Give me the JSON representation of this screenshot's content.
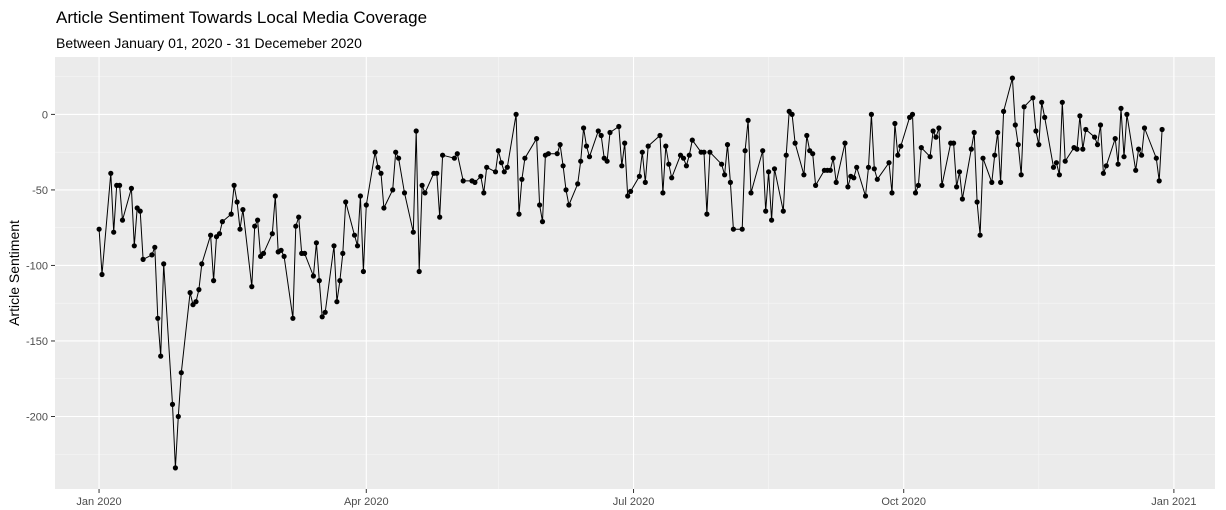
{
  "chart_data": {
    "type": "line",
    "title": "Article Sentiment Towards Local Media Coverage",
    "subtitle": "Between January 01, 2020 - 31 Decemeber 2020",
    "xlabel": "",
    "ylabel": "Article Sentiment",
    "xlim": [
      "2019-12-17",
      "2021-01-15"
    ],
    "ylim": [
      -248,
      38
    ],
    "x_ticks": [
      {
        "date": "2020-01-01",
        "label": "Jan 2020"
      },
      {
        "date": "2020-04-01",
        "label": "Apr 2020"
      },
      {
        "date": "2020-07-01",
        "label": "Jul 2020"
      },
      {
        "date": "2020-10-01",
        "label": "Oct 2020"
      },
      {
        "date": "2021-01-01",
        "label": "Jan 2021"
      }
    ],
    "x_minor_ticks": [
      "2020-02-15",
      "2020-05-16",
      "2020-08-16",
      "2020-11-16"
    ],
    "y_ticks": [
      0,
      -50,
      -100,
      -150,
      -200
    ],
    "y_minor_ticks": [
      25,
      -25,
      -75,
      -125,
      -175,
      -225
    ],
    "grid": true,
    "colors": {
      "panel": "#ebebeb",
      "grid": "#ffffff",
      "series": "#000000"
    },
    "series": [
      {
        "points": [
          [
            "2020-01-01",
            -76
          ],
          [
            "2020-01-02",
            -106
          ],
          [
            "2020-01-05",
            -39
          ],
          [
            "2020-01-06",
            -78
          ],
          [
            "2020-01-07",
            -47
          ],
          [
            "2020-01-08",
            -47
          ],
          [
            "2020-01-09",
            -70
          ],
          [
            "2020-01-12",
            -49
          ],
          [
            "2020-01-13",
            -87
          ],
          [
            "2020-01-14",
            -62
          ],
          [
            "2020-01-15",
            -64
          ],
          [
            "2020-01-16",
            -96
          ],
          [
            "2020-01-19",
            -93
          ],
          [
            "2020-01-20",
            -88
          ],
          [
            "2020-01-21",
            -135
          ],
          [
            "2020-01-22",
            -160
          ],
          [
            "2020-01-23",
            -99
          ],
          [
            "2020-01-26",
            -192
          ],
          [
            "2020-01-27",
            -234
          ],
          [
            "2020-01-28",
            -200
          ],
          [
            "2020-01-29",
            -171
          ],
          [
            "2020-02-01",
            -118
          ],
          [
            "2020-02-02",
            -126
          ],
          [
            "2020-02-03",
            -124
          ],
          [
            "2020-02-04",
            -116
          ],
          [
            "2020-02-05",
            -99
          ],
          [
            "2020-02-08",
            -80
          ],
          [
            "2020-02-09",
            -110
          ],
          [
            "2020-02-10",
            -81
          ],
          [
            "2020-02-11",
            -79
          ],
          [
            "2020-02-12",
            -71
          ],
          [
            "2020-02-15",
            -66
          ],
          [
            "2020-02-16",
            -47
          ],
          [
            "2020-02-17",
            -58
          ],
          [
            "2020-02-18",
            -76
          ],
          [
            "2020-02-19",
            -63
          ],
          [
            "2020-02-22",
            -114
          ],
          [
            "2020-02-23",
            -74
          ],
          [
            "2020-02-24",
            -70
          ],
          [
            "2020-02-25",
            -94
          ],
          [
            "2020-02-26",
            -92
          ],
          [
            "2020-02-29",
            -79
          ],
          [
            "2020-03-01",
            -54
          ],
          [
            "2020-03-02",
            -91
          ],
          [
            "2020-03-03",
            -90
          ],
          [
            "2020-03-04",
            -94
          ],
          [
            "2020-03-07",
            -135
          ],
          [
            "2020-03-08",
            -74
          ],
          [
            "2020-03-09",
            -68
          ],
          [
            "2020-03-10",
            -92
          ],
          [
            "2020-03-11",
            -92
          ],
          [
            "2020-03-14",
            -107
          ],
          [
            "2020-03-15",
            -85
          ],
          [
            "2020-03-16",
            -110
          ],
          [
            "2020-03-17",
            -134
          ],
          [
            "2020-03-18",
            -131
          ],
          [
            "2020-03-21",
            -87
          ],
          [
            "2020-03-22",
            -124
          ],
          [
            "2020-03-23",
            -110
          ],
          [
            "2020-03-24",
            -92
          ],
          [
            "2020-03-25",
            -58
          ],
          [
            "2020-03-28",
            -80
          ],
          [
            "2020-03-29",
            -87
          ],
          [
            "2020-03-30",
            -54
          ],
          [
            "2020-03-31",
            -104
          ],
          [
            "2020-04-01",
            -60
          ],
          [
            "2020-04-04",
            -25
          ],
          [
            "2020-04-05",
            -35
          ],
          [
            "2020-04-06",
            -39
          ],
          [
            "2020-04-07",
            -62
          ],
          [
            "2020-04-10",
            -50
          ],
          [
            "2020-04-11",
            -25
          ],
          [
            "2020-04-12",
            -29
          ],
          [
            "2020-04-14",
            -52
          ],
          [
            "2020-04-17",
            -78
          ],
          [
            "2020-04-18",
            -11
          ],
          [
            "2020-04-19",
            -104
          ],
          [
            "2020-04-20",
            -47
          ],
          [
            "2020-04-21",
            -52
          ],
          [
            "2020-04-24",
            -39
          ],
          [
            "2020-04-25",
            -39
          ],
          [
            "2020-04-26",
            -68
          ],
          [
            "2020-04-27",
            -27
          ],
          [
            "2020-05-01",
            -29
          ],
          [
            "2020-05-02",
            -26
          ],
          [
            "2020-05-04",
            -44
          ],
          [
            "2020-05-07",
            -44
          ],
          [
            "2020-05-08",
            -45
          ],
          [
            "2020-05-10",
            -41
          ],
          [
            "2020-05-11",
            -52
          ],
          [
            "2020-05-12",
            -35
          ],
          [
            "2020-05-15",
            -38
          ],
          [
            "2020-05-16",
            -24
          ],
          [
            "2020-05-17",
            -32
          ],
          [
            "2020-05-18",
            -38
          ],
          [
            "2020-05-19",
            -35
          ],
          [
            "2020-05-22",
            0
          ],
          [
            "2020-05-23",
            -66
          ],
          [
            "2020-05-24",
            -43
          ],
          [
            "2020-05-25",
            -29
          ],
          [
            "2020-05-29",
            -16
          ],
          [
            "2020-05-30",
            -60
          ],
          [
            "2020-05-31",
            -71
          ],
          [
            "2020-06-01",
            -27
          ],
          [
            "2020-06-02",
            -26
          ],
          [
            "2020-06-05",
            -26
          ],
          [
            "2020-06-06",
            -20
          ],
          [
            "2020-06-07",
            -34
          ],
          [
            "2020-06-08",
            -50
          ],
          [
            "2020-06-09",
            -60
          ],
          [
            "2020-06-12",
            -46
          ],
          [
            "2020-06-13",
            -31
          ],
          [
            "2020-06-14",
            -9
          ],
          [
            "2020-06-15",
            -21
          ],
          [
            "2020-06-16",
            -28
          ],
          [
            "2020-06-19",
            -11
          ],
          [
            "2020-06-20",
            -14
          ],
          [
            "2020-06-21",
            -29
          ],
          [
            "2020-06-22",
            -31
          ],
          [
            "2020-06-23",
            -12
          ],
          [
            "2020-06-26",
            -8
          ],
          [
            "2020-06-27",
            -34
          ],
          [
            "2020-06-28",
            -19
          ],
          [
            "2020-06-29",
            -54
          ],
          [
            "2020-06-30",
            -51
          ],
          [
            "2020-07-03",
            -41
          ],
          [
            "2020-07-04",
            -25
          ],
          [
            "2020-07-05",
            -45
          ],
          [
            "2020-07-06",
            -21
          ],
          [
            "2020-07-10",
            -14
          ],
          [
            "2020-07-11",
            -52
          ],
          [
            "2020-07-12",
            -21
          ],
          [
            "2020-07-13",
            -33
          ],
          [
            "2020-07-14",
            -42
          ],
          [
            "2020-07-17",
            -27
          ],
          [
            "2020-07-18",
            -29
          ],
          [
            "2020-07-19",
            -34
          ],
          [
            "2020-07-20",
            -27
          ],
          [
            "2020-07-21",
            -17
          ],
          [
            "2020-07-24",
            -25
          ],
          [
            "2020-07-25",
            -25
          ],
          [
            "2020-07-26",
            -66
          ],
          [
            "2020-07-27",
            -25
          ],
          [
            "2020-07-31",
            -33
          ],
          [
            "2020-08-01",
            -40
          ],
          [
            "2020-08-02",
            -20
          ],
          [
            "2020-08-03",
            -45
          ],
          [
            "2020-08-04",
            -76
          ],
          [
            "2020-08-07",
            -76
          ],
          [
            "2020-08-08",
            -24
          ],
          [
            "2020-08-09",
            -4
          ],
          [
            "2020-08-10",
            -52
          ],
          [
            "2020-08-14",
            -24
          ],
          [
            "2020-08-15",
            -64
          ],
          [
            "2020-08-16",
            -38
          ],
          [
            "2020-08-17",
            -70
          ],
          [
            "2020-08-18",
            -36
          ],
          [
            "2020-08-21",
            -64
          ],
          [
            "2020-08-22",
            -27
          ],
          [
            "2020-08-23",
            2
          ],
          [
            "2020-08-24",
            0
          ],
          [
            "2020-08-25",
            -19
          ],
          [
            "2020-08-28",
            -40
          ],
          [
            "2020-08-29",
            -14
          ],
          [
            "2020-08-30",
            -24
          ],
          [
            "2020-08-31",
            -26
          ],
          [
            "2020-09-01",
            -47
          ],
          [
            "2020-09-04",
            -37
          ],
          [
            "2020-09-05",
            -37
          ],
          [
            "2020-09-06",
            -37
          ],
          [
            "2020-09-07",
            -29
          ],
          [
            "2020-09-08",
            -45
          ],
          [
            "2020-09-11",
            -19
          ],
          [
            "2020-09-12",
            -48
          ],
          [
            "2020-09-13",
            -41
          ],
          [
            "2020-09-14",
            -42
          ],
          [
            "2020-09-15",
            -35
          ],
          [
            "2020-09-18",
            -54
          ],
          [
            "2020-09-19",
            -35
          ],
          [
            "2020-09-20",
            0
          ],
          [
            "2020-09-21",
            -36
          ],
          [
            "2020-09-22",
            -43
          ],
          [
            "2020-09-26",
            -32
          ],
          [
            "2020-09-27",
            -52
          ],
          [
            "2020-09-28",
            -6
          ],
          [
            "2020-09-29",
            -27
          ],
          [
            "2020-09-30",
            -21
          ],
          [
            "2020-10-03",
            -2
          ],
          [
            "2020-10-04",
            0
          ],
          [
            "2020-10-05",
            -52
          ],
          [
            "2020-10-06",
            -47
          ],
          [
            "2020-10-07",
            -22
          ],
          [
            "2020-10-10",
            -28
          ],
          [
            "2020-10-11",
            -11
          ],
          [
            "2020-10-12",
            -15
          ],
          [
            "2020-10-13",
            -9
          ],
          [
            "2020-10-14",
            -47
          ],
          [
            "2020-10-17",
            -19
          ],
          [
            "2020-10-18",
            -19
          ],
          [
            "2020-10-19",
            -48
          ],
          [
            "2020-10-20",
            -38
          ],
          [
            "2020-10-21",
            -56
          ],
          [
            "2020-10-24",
            -23
          ],
          [
            "2020-10-25",
            -12
          ],
          [
            "2020-10-26",
            -58
          ],
          [
            "2020-10-27",
            -80
          ],
          [
            "2020-10-28",
            -29
          ],
          [
            "2020-10-31",
            -45
          ],
          [
            "2020-11-01",
            -27
          ],
          [
            "2020-11-02",
            -12
          ],
          [
            "2020-11-03",
            -45
          ],
          [
            "2020-11-04",
            2
          ],
          [
            "2020-11-07",
            24
          ],
          [
            "2020-11-08",
            -7
          ],
          [
            "2020-11-09",
            -20
          ],
          [
            "2020-11-10",
            -40
          ],
          [
            "2020-11-11",
            5
          ],
          [
            "2020-11-14",
            11
          ],
          [
            "2020-11-15",
            -11
          ],
          [
            "2020-11-16",
            -20
          ],
          [
            "2020-11-17",
            8
          ],
          [
            "2020-11-18",
            -2
          ],
          [
            "2020-11-21",
            -35
          ],
          [
            "2020-11-22",
            -32
          ],
          [
            "2020-11-23",
            -40
          ],
          [
            "2020-11-24",
            8
          ],
          [
            "2020-11-25",
            -31
          ],
          [
            "2020-11-28",
            -22
          ],
          [
            "2020-11-29",
            -23
          ],
          [
            "2020-11-30",
            -1
          ],
          [
            "2020-12-01",
            -23
          ],
          [
            "2020-12-02",
            -10
          ],
          [
            "2020-12-05",
            -15
          ],
          [
            "2020-12-06",
            -20
          ],
          [
            "2020-12-07",
            -7
          ],
          [
            "2020-12-08",
            -39
          ],
          [
            "2020-12-09",
            -34
          ],
          [
            "2020-12-12",
            -16
          ],
          [
            "2020-12-13",
            -33
          ],
          [
            "2020-12-14",
            4
          ],
          [
            "2020-12-15",
            -28
          ],
          [
            "2020-12-16",
            0
          ],
          [
            "2020-12-19",
            -37
          ],
          [
            "2020-12-20",
            -23
          ],
          [
            "2020-12-21",
            -27
          ],
          [
            "2020-12-22",
            -9
          ],
          [
            "2020-12-26",
            -29
          ],
          [
            "2020-12-27",
            -44
          ],
          [
            "2020-12-28",
            -10
          ]
        ]
      }
    ]
  }
}
